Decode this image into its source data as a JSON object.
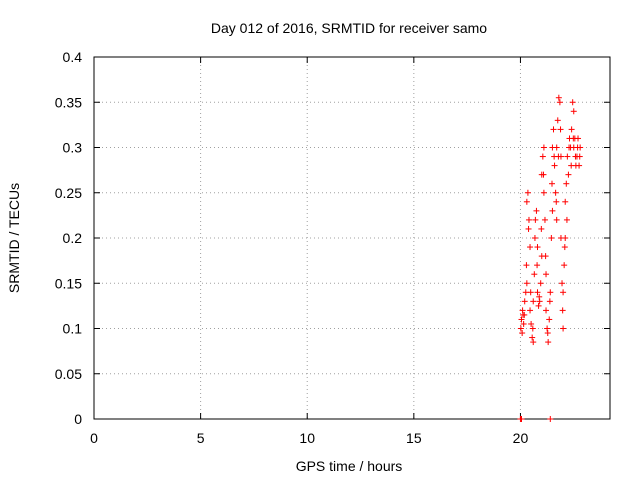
{
  "chart_data": {
    "type": "scatter",
    "title": "Day 012 of 2016, SRMTID for receiver samo",
    "xlabel": "GPS time / hours",
    "ylabel": "SRMTID / TECUs",
    "xlim": [
      0,
      24.2
    ],
    "ylim": [
      0,
      0.4
    ],
    "xticks": [
      "0",
      "5",
      "10",
      "15",
      "20"
    ],
    "yticks": [
      "0",
      "0.05",
      "0.1",
      "0.15",
      "0.2",
      "0.25",
      "0.3",
      "0.35",
      "0.4"
    ],
    "grid": true,
    "marker": "+",
    "color": "#ff0000",
    "series": [
      {
        "points": [
          [
            20.0,
            0.0
          ],
          [
            20.05,
            0.0
          ],
          [
            21.4,
            0.0
          ],
          [
            20.02,
            0.1
          ],
          [
            20.05,
            0.11
          ],
          [
            20.1,
            0.12
          ],
          [
            20.12,
            0.115
          ],
          [
            20.15,
            0.105
          ],
          [
            20.2,
            0.13
          ],
          [
            20.25,
            0.14
          ],
          [
            20.3,
            0.15
          ],
          [
            20.3,
            0.24
          ],
          [
            20.35,
            0.25
          ],
          [
            20.4,
            0.22
          ],
          [
            20.45,
            0.19
          ],
          [
            20.45,
            0.12
          ],
          [
            20.5,
            0.105
          ],
          [
            20.55,
            0.09
          ],
          [
            20.6,
            0.085
          ],
          [
            20.6,
            0.13
          ],
          [
            20.65,
            0.16
          ],
          [
            20.7,
            0.22
          ],
          [
            20.75,
            0.23
          ],
          [
            20.8,
            0.19
          ],
          [
            20.8,
            0.14
          ],
          [
            20.85,
            0.125
          ],
          [
            20.9,
            0.13
          ],
          [
            20.95,
            0.15
          ],
          [
            21.0,
            0.18
          ],
          [
            21.0,
            0.27
          ],
          [
            21.05,
            0.29
          ],
          [
            21.1,
            0.3
          ],
          [
            21.1,
            0.25
          ],
          [
            21.15,
            0.22
          ],
          [
            21.2,
            0.16
          ],
          [
            21.2,
            0.12
          ],
          [
            21.25,
            0.1
          ],
          [
            21.3,
            0.085
          ],
          [
            21.35,
            0.11
          ],
          [
            21.4,
            0.14
          ],
          [
            21.45,
            0.2
          ],
          [
            21.5,
            0.23
          ],
          [
            21.5,
            0.3
          ],
          [
            21.55,
            0.32
          ],
          [
            21.6,
            0.28
          ],
          [
            21.65,
            0.25
          ],
          [
            21.7,
            0.22
          ],
          [
            21.7,
            0.3
          ],
          [
            21.75,
            0.33
          ],
          [
            21.8,
            0.355
          ],
          [
            21.85,
            0.35
          ],
          [
            21.9,
            0.29
          ],
          [
            21.9,
            0.2
          ],
          [
            21.95,
            0.15
          ],
          [
            22.0,
            0.1
          ],
          [
            22.0,
            0.14
          ],
          [
            22.05,
            0.17
          ],
          [
            22.1,
            0.2
          ],
          [
            22.1,
            0.24
          ],
          [
            22.15,
            0.26
          ],
          [
            22.2,
            0.29
          ],
          [
            22.25,
            0.27
          ],
          [
            22.3,
            0.31
          ],
          [
            22.35,
            0.3
          ],
          [
            22.4,
            0.32
          ],
          [
            22.45,
            0.35
          ],
          [
            22.5,
            0.34
          ],
          [
            22.5,
            0.3
          ],
          [
            22.55,
            0.31
          ],
          [
            22.6,
            0.28
          ],
          [
            22.65,
            0.29
          ],
          [
            22.7,
            0.31
          ],
          [
            22.75,
            0.28
          ],
          [
            22.8,
            0.3
          ],
          [
            20.08,
            0.095
          ],
          [
            20.18,
            0.115
          ],
          [
            20.28,
            0.17
          ],
          [
            20.38,
            0.21
          ],
          [
            20.48,
            0.14
          ],
          [
            20.58,
            0.1
          ],
          [
            20.68,
            0.2
          ],
          [
            20.78,
            0.17
          ],
          [
            20.88,
            0.135
          ],
          [
            20.98,
            0.21
          ],
          [
            21.08,
            0.27
          ],
          [
            21.18,
            0.18
          ],
          [
            21.28,
            0.095
          ],
          [
            21.38,
            0.13
          ],
          [
            21.48,
            0.26
          ],
          [
            21.58,
            0.29
          ],
          [
            21.68,
            0.24
          ],
          [
            21.78,
            0.29
          ],
          [
            21.88,
            0.32
          ],
          [
            21.98,
            0.12
          ],
          [
            22.08,
            0.19
          ],
          [
            22.18,
            0.22
          ],
          [
            22.28,
            0.3
          ],
          [
            22.38,
            0.28
          ],
          [
            22.48,
            0.31
          ],
          [
            22.58,
            0.29
          ],
          [
            22.68,
            0.3
          ],
          [
            22.78,
            0.29
          ]
        ]
      }
    ]
  }
}
